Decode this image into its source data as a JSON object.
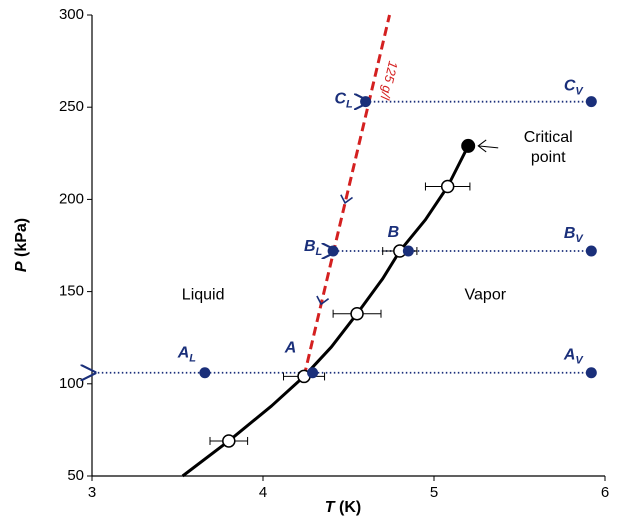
{
  "chart_data": {
    "type": "scatter",
    "x_label": "T",
    "x_unit": "(K)",
    "y_label": "P",
    "y_unit": "(kPa)",
    "xlim": [
      3,
      6
    ],
    "xticks": [
      3,
      4,
      5,
      6
    ],
    "ylim": [
      50,
      300
    ],
    "yticks": [
      50,
      100,
      150,
      200,
      250,
      300
    ],
    "boundary": {
      "color": "#000000",
      "x": [
        3.53,
        3.8,
        4.05,
        4.24,
        4.4,
        4.55,
        4.7,
        4.8,
        4.95,
        5.08,
        5.2
      ],
      "y": [
        50,
        69,
        88,
        104,
        120,
        138,
        157,
        172,
        189,
        207,
        229
      ]
    },
    "measurements": {
      "color": "#000000",
      "x": [
        3.8,
        4.24,
        4.55,
        4.8,
        5.08
      ],
      "y": [
        69,
        104,
        138,
        172,
        207
      ],
      "x_err": [
        0.11,
        0.12,
        0.14,
        0.1,
        0.13
      ]
    },
    "critical_point": {
      "color": "#000000",
      "x": 5.2,
      "y": 229,
      "label": [
        "Critical",
        "point"
      ]
    },
    "isochore": {
      "color": "#d42020",
      "x": [
        4.24,
        4.74
      ],
      "y": [
        104,
        300
      ],
      "label": "125 g/l"
    },
    "states": {
      "color": "#1a2f7a",
      "points": [
        {
          "letter": "A",
          "sub": "L",
          "x": 3.66,
          "y": 106
        },
        {
          "letter": "A",
          "x": 4.29,
          "y": 106
        },
        {
          "letter": "A",
          "sub": "V",
          "x": 5.92,
          "y": 106
        },
        {
          "letter": "B",
          "sub": "L",
          "x": 4.41,
          "y": 172
        },
        {
          "letter": "B",
          "x": 4.85,
          "y": 172
        },
        {
          "letter": "B",
          "sub": "V",
          "x": 5.92,
          "y": 172
        },
        {
          "letter": "C",
          "sub": "L",
          "x": 4.6,
          "y": 253
        },
        {
          "letter": "C",
          "sub": "V",
          "x": 5.92,
          "y": 253
        }
      ]
    },
    "arrows": [
      {
        "x1": 5.92,
        "x2": 3.0,
        "y": 106
      },
      {
        "x1": 5.92,
        "x2": 4.41,
        "y": 172
      },
      {
        "x1": 5.92,
        "x2": 4.6,
        "y": 253
      }
    ],
    "regions": [
      {
        "label": "Liquid",
        "x": 3.65,
        "y": 148
      },
      {
        "label": "Vapor",
        "x": 5.3,
        "y": 148
      }
    ]
  }
}
